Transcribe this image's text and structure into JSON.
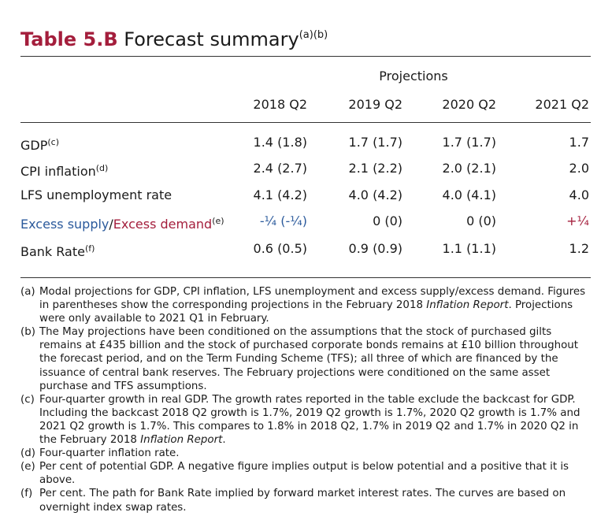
{
  "title": {
    "number": "Table 5.B",
    "text": "Forecast summary",
    "superscript": "(a)(b)"
  },
  "header": {
    "projections": "Projections",
    "columns": [
      "2018 Q2",
      "2019 Q2",
      "2020 Q2",
      "2021 Q2"
    ]
  },
  "rows": [
    {
      "label": "GDP",
      "sup": "(c)",
      "values": [
        "1.4 (1.8)",
        "1.7 (1.7)",
        "1.7 (1.7)",
        "1.7"
      ]
    },
    {
      "label": "CPI inflation",
      "sup": "(d)",
      "values": [
        "2.4 (2.7)",
        "2.1 (2.2)",
        "2.0 (2.1)",
        "2.0"
      ]
    },
    {
      "label": "LFS unemployment rate",
      "sup": "",
      "values": [
        "4.1 (4.2)",
        "4.0 (4.2)",
        "4.0 (4.1)",
        "4.0"
      ]
    },
    {
      "label_part1": "Excess supply",
      "label_sep": "/",
      "label_part2": "Excess demand",
      "sup": "(e)",
      "values": [
        "-¼ (-¼)",
        "0 (0)",
        "0 (0)",
        "+¼"
      ]
    },
    {
      "label": "Bank Rate",
      "sup": "(f)",
      "values": [
        "0.6 (0.5)",
        "0.9 (0.9)",
        "1.1 (1.1)",
        "1.2"
      ]
    }
  ],
  "notes": [
    {
      "tag": "(a)",
      "text": "Modal projections for GDP, CPI inflation, LFS unemployment and excess supply/excess demand. Figures in parentheses show the corresponding projections in the February 2018 ",
      "italic": "Inflation Report",
      "text2": ". Projections were only available to 2021 Q1 in February."
    },
    {
      "tag": "(b)",
      "text": "The May projections have been conditioned on the assumptions that the stock of purchased gilts remains at £435 billion and the stock of purchased corporate bonds remains at £10 billion throughout the forecast period, and on the Term Funding Scheme (TFS); all three of which are financed by the issuance of central bank reserves. The February projections were conditioned on the same asset purchase and TFS assumptions.",
      "italic": "",
      "text2": ""
    },
    {
      "tag": "(c)",
      "text": "Four-quarter growth in real GDP. The growth rates reported in the table exclude the backcast for GDP. Including the backcast 2018 Q2 growth is 1.7%, 2019 Q2 growth is 1.7%, 2020 Q2 growth is 1.7% and 2021 Q2 growth is 1.7%. This compares to 1.8% in 2018 Q2, 1.7% in 2019 Q2 and 1.7% in 2020 Q2 in the February 2018 ",
      "italic": "Inflation Report",
      "text2": "."
    },
    {
      "tag": "(d)",
      "text": "Four-quarter inflation rate.",
      "italic": "",
      "text2": ""
    },
    {
      "tag": "(e)",
      "text": "Per cent of potential GDP. A negative figure implies output is below potential and a positive that it is above.",
      "italic": "",
      "text2": ""
    },
    {
      "tag": "(f)",
      "text": "Per cent. The path for Bank Rate implied by forward market interest rates. The curves are based on overnight index swap rates.",
      "italic": "",
      "text2": ""
    }
  ],
  "colors": {
    "accent_red": "#a41e3c",
    "accent_blue": "#2b5a9c"
  }
}
